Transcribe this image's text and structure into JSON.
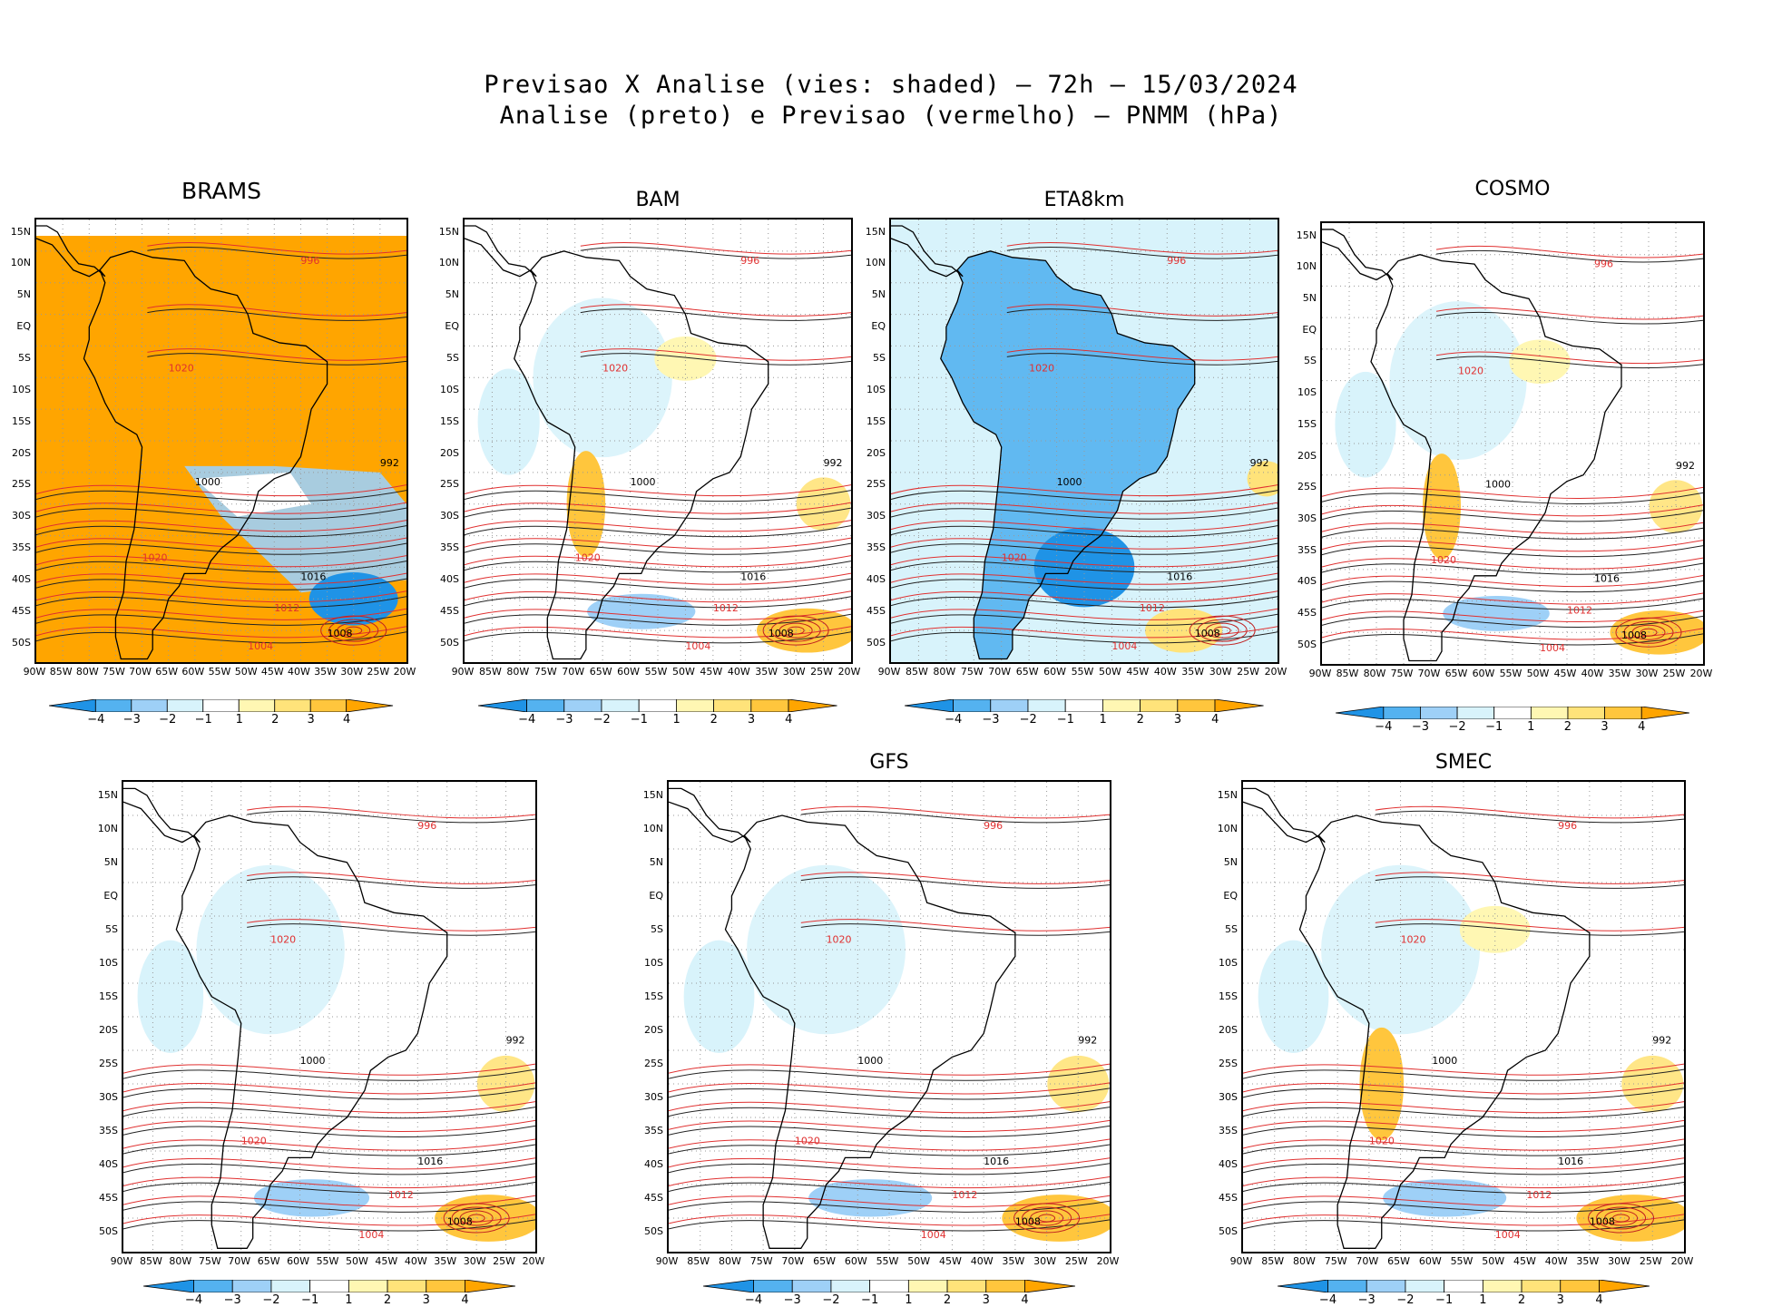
{
  "title": {
    "line1": "Previsao X Analise (vies: shaded) – 72h – 15/03/2024",
    "line2": "Analise (preto) e Previsao (vermelho) – PNMM (hPa)"
  },
  "lat_labels": [
    "15N",
    "10N",
    "5N",
    "EQ",
    "5S",
    "10S",
    "15S",
    "20S",
    "25S",
    "30S",
    "35S",
    "40S",
    "45S",
    "50S"
  ],
  "lon_labels": [
    "90W",
    "85W",
    "80W",
    "75W",
    "70W",
    "65W",
    "60W",
    "55W",
    "50W",
    "45W",
    "40W",
    "35W",
    "30W",
    "25W",
    "20W"
  ],
  "colorbar": {
    "labels": [
      "−4",
      "−3",
      "−2",
      "−1",
      "1",
      "2",
      "3",
      "4"
    ],
    "colors": [
      "#1f93e6",
      "#54b2f0",
      "#9ed0f7",
      "#d8f3fb",
      "#ffffff",
      "#fff7b3",
      "#ffe37a",
      "#ffc63d",
      "#ffa500"
    ]
  },
  "panels": [
    {
      "name": "BRAMS",
      "bias": "warm-strong",
      "title_bold": true
    },
    {
      "name": "BAM",
      "bias": "mixed"
    },
    {
      "name": "ETA8km",
      "bias": "cold"
    },
    {
      "name": "COSMO",
      "bias": "mixed"
    },
    {
      "name": "",
      "bias": "cold-light"
    },
    {
      "name": "GFS",
      "bias": "cold-light"
    },
    {
      "name": "SMEC",
      "bias": "mixed"
    }
  ],
  "isobar_labels": [
    "1020",
    "1016",
    "1012",
    "1008",
    "1004",
    "1000",
    "996",
    "992"
  ]
}
